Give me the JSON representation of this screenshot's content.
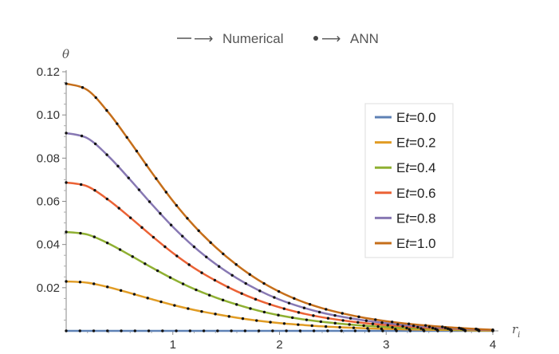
{
  "caption": {
    "numerical_label": "Numerical",
    "ann_label": "ANN",
    "arrow": "⟶"
  },
  "chart_data": {
    "type": "line",
    "title": "",
    "xlabel": "r",
    "xlabel_subscript": "i",
    "ylabel": "θ",
    "xlim": [
      0,
      4
    ],
    "ylim": [
      0,
      0.12
    ],
    "xticks": [
      1,
      2,
      3,
      4
    ],
    "xtick_labels": [
      "1",
      "2",
      "3",
      "4"
    ],
    "yticks": [
      0.02,
      0.04,
      0.06,
      0.08,
      0.1,
      0.12
    ],
    "ytick_labels": [
      "0.02",
      "0.04",
      "0.06",
      "0.08",
      "0.10",
      "0.12"
    ],
    "legend_position": "right",
    "x": [
      0,
      0.2,
      0.4,
      0.6,
      0.8,
      1.0,
      1.2,
      1.4,
      1.6,
      1.8,
      2.0,
      2.2,
      2.4,
      2.6,
      2.8,
      3.0,
      3.2,
      3.4,
      3.6,
      3.8,
      4.0
    ],
    "series": [
      {
        "name": "Et=0.0",
        "legend_prefix": "E",
        "legend_var": "t",
        "legend_value": "=0.0",
        "color": "#5e81b5",
        "values": [
          0.0,
          0.0,
          0.0,
          0.0,
          0.0,
          0.0,
          0.0,
          0.0,
          0.0,
          0.0,
          0.0,
          0.0,
          0.0,
          0.0,
          0.0,
          0.0,
          0.0,
          0.0,
          0.0,
          0.0,
          0.0
        ]
      },
      {
        "name": "Et=0.2",
        "legend_prefix": "E",
        "legend_var": "t",
        "legend_value": "=0.2",
        "color": "#e19c24",
        "values": [
          0.0229,
          0.0223,
          0.0202,
          0.0175,
          0.0147,
          0.012,
          0.0097,
          0.0078,
          0.0061,
          0.0047,
          0.0036,
          0.0028,
          0.0021,
          0.0016,
          0.0012,
          0.0009,
          0.0007,
          0.0005,
          0.0004,
          0.0002,
          0.0001
        ]
      },
      {
        "name": "Et=0.4",
        "legend_prefix": "E",
        "legend_var": "t",
        "legend_value": "=0.4",
        "color": "#8fb032",
        "values": [
          0.0458,
          0.0446,
          0.0404,
          0.035,
          0.0294,
          0.0241,
          0.0194,
          0.0155,
          0.0122,
          0.0094,
          0.0072,
          0.0055,
          0.0042,
          0.0032,
          0.0024,
          0.0018,
          0.0013,
          0.001,
          0.0007,
          0.0004,
          0.0002
        ]
      },
      {
        "name": "Et=0.6",
        "legend_prefix": "E",
        "legend_var": "t",
        "legend_value": "=0.6",
        "color": "#eb6235",
        "values": [
          0.0687,
          0.0669,
          0.0605,
          0.0525,
          0.0441,
          0.0361,
          0.0291,
          0.0233,
          0.0183,
          0.0142,
          0.0109,
          0.0083,
          0.0063,
          0.0048,
          0.0036,
          0.0027,
          0.002,
          0.0014,
          0.001,
          0.0006,
          0.0003
        ]
      },
      {
        "name": "Et=0.8",
        "legend_prefix": "E",
        "legend_var": "t",
        "legend_value": "=0.8",
        "color": "#8778b3",
        "values": [
          0.0916,
          0.0892,
          0.0807,
          0.07,
          0.0588,
          0.0482,
          0.0389,
          0.031,
          0.0244,
          0.0189,
          0.0145,
          0.0111,
          0.0084,
          0.0064,
          0.0048,
          0.0036,
          0.0026,
          0.0019,
          0.0013,
          0.0008,
          0.0004
        ]
      },
      {
        "name": "Et=1.0",
        "legend_prefix": "E",
        "legend_var": "t",
        "legend_value": "=1.0",
        "color": "#c56e1a",
        "values": [
          0.1145,
          0.1115,
          0.1009,
          0.0875,
          0.0735,
          0.0602,
          0.0486,
          0.0388,
          0.0305,
          0.0236,
          0.0181,
          0.0138,
          0.0105,
          0.008,
          0.006,
          0.0045,
          0.0033,
          0.0024,
          0.0016,
          0.001,
          0.0005
        ]
      }
    ]
  }
}
